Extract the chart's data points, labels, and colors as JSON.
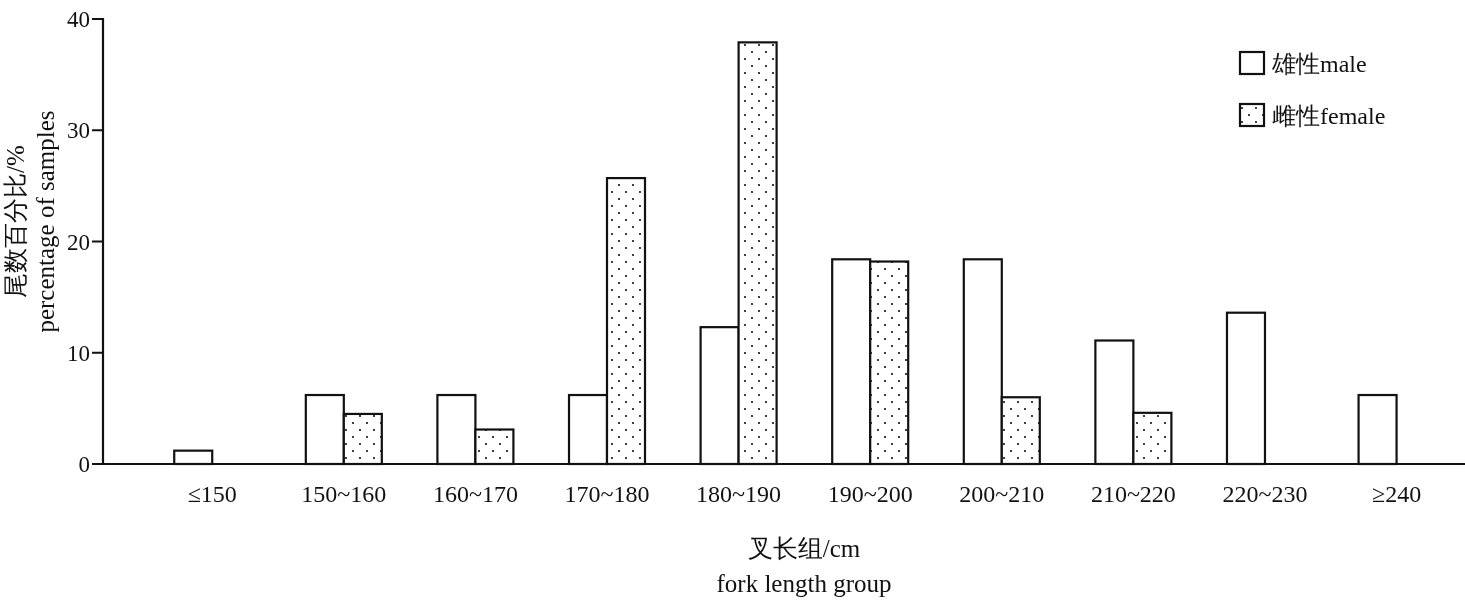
{
  "chart_data": {
    "type": "bar",
    "xlabel": "叉长组/cm\nfork length group",
    "ylabel": "尾数百分比/%\npercentage of samples",
    "categories": [
      "≤150",
      "150~160",
      "160~170",
      "170~180",
      "180~190",
      "190~200",
      "200~210",
      "210~220",
      "220~230",
      "≥240"
    ],
    "series": [
      {
        "name": "雄性male",
        "color": "#ffffff",
        "values": [
          1.2,
          6.2,
          6.2,
          6.2,
          12.3,
          18.4,
          18.4,
          11.1,
          13.6,
          6.2
        ]
      },
      {
        "name": "雌性female",
        "color": "#111111",
        "values": [
          0,
          4.5,
          3.1,
          25.7,
          37.9,
          18.2,
          6.0,
          4.6,
          0,
          0
        ]
      }
    ],
    "ylim": [
      0,
      40
    ],
    "yticks": [
      0,
      10,
      20,
      30,
      40
    ],
    "grid": false,
    "legend": "top right"
  }
}
